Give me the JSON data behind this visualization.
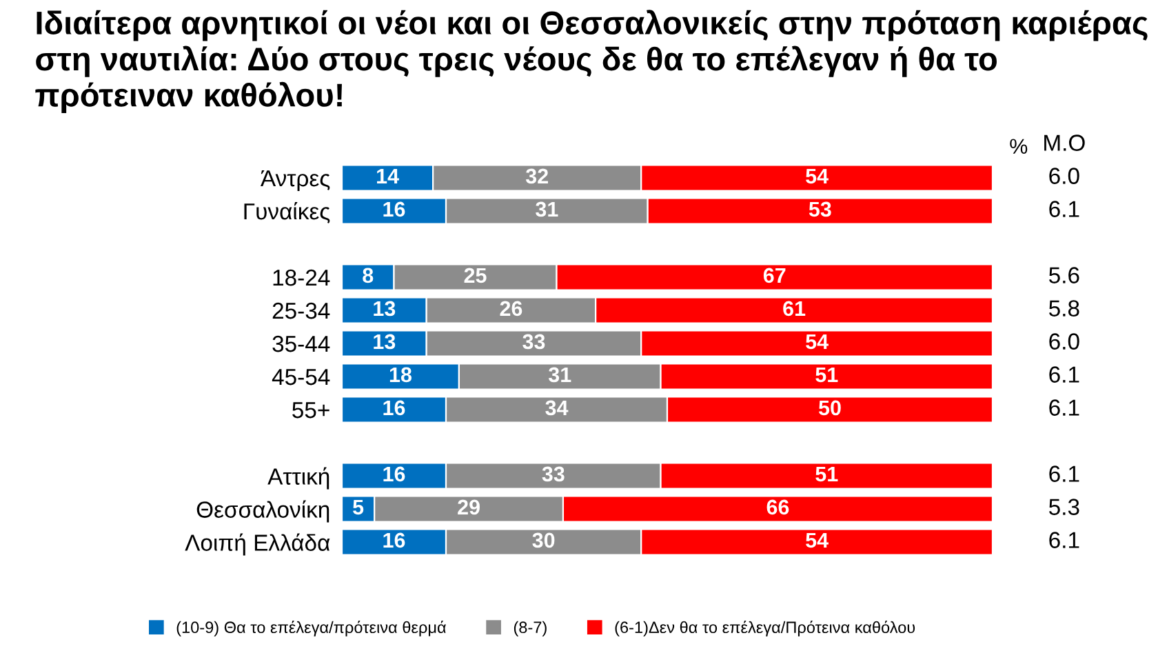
{
  "chart_data": {
    "type": "bar",
    "orientation": "horizontal",
    "stacked": true,
    "title": "Ιδιαίτερα αρνητικοί οι νέοι και οι Θεσσαλονικείς στην πρόταση καριέρας στη ναυτιλία: Δύο στους τρεις νέους δε θα το επέλεγαν ή θα το πρότειναν καθόλου!",
    "categories": [
      "Άντρες",
      "Γυναίκες",
      null,
      "18-24",
      "25-34",
      "35-44",
      "45-54",
      "55+",
      null,
      "Αττική",
      "Θεσσαλονίκη",
      "Λοιπή Ελλάδα"
    ],
    "series": [
      {
        "name": "(10-9) Θα το επέλεγα/πρότεινα θερμά",
        "color": "#0070c0",
        "values": [
          14,
          16,
          null,
          8,
          13,
          13,
          18,
          16,
          null,
          16,
          5,
          16
        ]
      },
      {
        "name": "(8-7)",
        "color": "#8c8c8c",
        "values": [
          32,
          31,
          null,
          25,
          26,
          33,
          31,
          34,
          null,
          33,
          29,
          30
        ]
      },
      {
        "name": "(6-1)Δεν θα το επέλεγα/Πρότεινα καθόλου",
        "color": "#ff0000",
        "values": [
          54,
          53,
          null,
          67,
          61,
          54,
          51,
          50,
          null,
          51,
          66,
          54
        ]
      }
    ],
    "xlim": [
      0,
      100
    ],
    "tick_labels": "y",
    "data_labels": true,
    "legend": "bottom",
    "grid": false,
    "annotations": [
      "%",
      "Μ.Ο",
      "6.0",
      "6.1",
      "5.6",
      "5.8",
      "6.0",
      "6.1",
      "6.1",
      "6.1",
      "5.3",
      "6.1"
    ]
  }
}
